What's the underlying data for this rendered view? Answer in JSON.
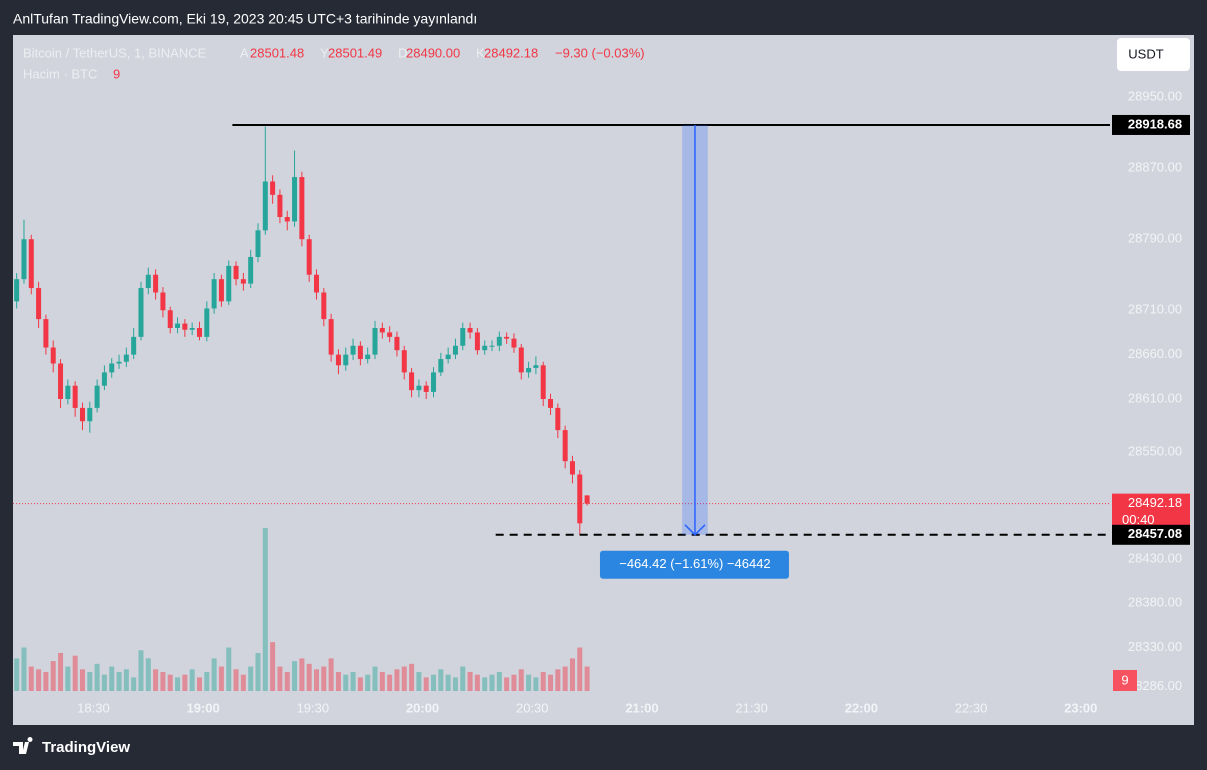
{
  "header": {
    "title": "AnlTufan TradingView.com, Eki 19, 2023 20:45 UTC+3 tarihinde yayınlandı"
  },
  "footer": {
    "brand": "TradingView"
  },
  "chart_data": {
    "type": "candlestick",
    "symbol": "Bitcoin / TetherUS, 1, BINANCE",
    "legend": {
      "open_label": "A",
      "open": "28501.48",
      "high_label": "Y",
      "high": "28501.49",
      "low_label": "D",
      "low": "28490.00",
      "close_label": "K",
      "close": "28492.18",
      "change": "−9.30 (−0.03%)"
    },
    "volume_title": "Hacim · BTC",
    "currency": "USDT",
    "up_color": "#26a69a",
    "down_color": "#f23645",
    "x": [
      "18:09",
      "18:11",
      "18:13",
      "18:15",
      "18:17",
      "18:19",
      "18:21",
      "18:23",
      "18:25",
      "18:27",
      "18:29",
      "18:31",
      "18:33",
      "18:35",
      "18:37",
      "18:39",
      "18:41",
      "18:43",
      "18:45",
      "18:47",
      "18:49",
      "18:51",
      "18:53",
      "18:55",
      "18:57",
      "18:59",
      "19:01",
      "19:03",
      "19:05",
      "19:07",
      "19:09",
      "19:11",
      "19:13",
      "19:15",
      "19:17",
      "19:19",
      "19:21",
      "19:23",
      "19:25",
      "19:27",
      "19:29",
      "19:31",
      "19:33",
      "19:35",
      "19:37",
      "19:39",
      "19:41",
      "19:43",
      "19:45",
      "19:47",
      "19:49",
      "19:51",
      "19:53",
      "19:55",
      "19:57",
      "19:59",
      "20:01",
      "20:03",
      "20:05",
      "20:07",
      "20:09",
      "20:11",
      "20:13",
      "20:15",
      "20:17",
      "20:19",
      "20:21",
      "20:23",
      "20:25",
      "20:27",
      "20:29",
      "20:31",
      "20:33",
      "20:35",
      "20:37",
      "20:39",
      "20:41",
      "20:43",
      "20:45"
    ],
    "open": [
      28720,
      28745,
      28790,
      28735,
      28700,
      28668,
      28650,
      28610,
      28625,
      28600,
      28585,
      28600,
      28625,
      28640,
      28650,
      28652,
      28660,
      28680,
      28735,
      28750,
      28730,
      28710,
      28690,
      28695,
      28688,
      28690,
      28680,
      28712,
      28745,
      28720,
      28760,
      28745,
      28740,
      28770,
      28800,
      28855,
      28840,
      28815,
      28810,
      28860,
      28790,
      28750,
      28730,
      28700,
      28660,
      28648,
      28660,
      28670,
      28655,
      28660,
      28690,
      28685,
      28680,
      28665,
      28640,
      28620,
      28625,
      28618,
      28640,
      28655,
      28660,
      28670,
      28690,
      28685,
      28665,
      28670,
      28670,
      28680,
      28678,
      28668,
      28640,
      28645,
      28648,
      28610,
      28600,
      28575,
      28540,
      28525,
      28501.48
    ],
    "high": [
      28752,
      28812,
      28795,
      28742,
      28705,
      28676,
      28655,
      28632,
      28630,
      28606,
      28607,
      28632,
      28648,
      28656,
      28660,
      28668,
      28690,
      28742,
      28758,
      28756,
      28736,
      28714,
      28702,
      28700,
      28696,
      28697,
      28720,
      28752,
      28750,
      28766,
      28765,
      28752,
      28778,
      28808,
      28917,
      28862,
      28846,
      28822,
      28890,
      28866,
      28795,
      28756,
      28735,
      28706,
      28666,
      28668,
      28678,
      28675,
      28668,
      28698,
      28696,
      28692,
      28686,
      28670,
      28645,
      28632,
      28630,
      28646,
      28662,
      28668,
      28678,
      28696,
      28696,
      28690,
      28676,
      28676,
      28686,
      28685,
      28684,
      28672,
      28652,
      28658,
      28652,
      28616,
      28605,
      28580,
      28546,
      28530,
      28501.49
    ],
    "low": [
      28712,
      28740,
      28728,
      28690,
      28660,
      28640,
      28600,
      28604,
      28590,
      28575,
      28572,
      28595,
      28620,
      28634,
      28644,
      28646,
      28655,
      28676,
      28728,
      28722,
      28702,
      28684,
      28684,
      28680,
      28682,
      28676,
      28675,
      28706,
      28714,
      28716,
      28738,
      28732,
      28735,
      28764,
      28795,
      28830,
      28808,
      28800,
      28804,
      28782,
      28742,
      28722,
      28692,
      28652,
      28638,
      28642,
      28654,
      28648,
      28650,
      28655,
      28678,
      28674,
      28658,
      28632,
      28612,
      28612,
      28610,
      28612,
      28636,
      28650,
      28655,
      28665,
      28678,
      28660,
      28660,
      28664,
      28664,
      28672,
      28662,
      28632,
      28634,
      28638,
      28602,
      28592,
      28566,
      28532,
      28515,
      28457,
      28490
    ],
    "close": [
      28745,
      28790,
      28735,
      28700,
      28668,
      28650,
      28610,
      28625,
      28600,
      28585,
      28600,
      28625,
      28640,
      28650,
      28652,
      28660,
      28680,
      28735,
      28750,
      28730,
      28710,
      28690,
      28695,
      28688,
      28690,
      28680,
      28712,
      28745,
      28720,
      28760,
      28745,
      28740,
      28770,
      28800,
      28855,
      28840,
      28815,
      28810,
      28860,
      28790,
      28750,
      28730,
      28700,
      28660,
      28648,
      28660,
      28670,
      28655,
      28660,
      28690,
      28685,
      28680,
      28665,
      28640,
      28620,
      28625,
      28618,
      28640,
      28655,
      28660,
      28670,
      28690,
      28685,
      28665,
      28670,
      28670,
      28680,
      28678,
      28668,
      28640,
      28645,
      28648,
      28610,
      28600,
      28575,
      28540,
      28525,
      28470,
      28492.18
    ],
    "volume": {
      "values": [
        12,
        16,
        9,
        8,
        7,
        11,
        14,
        9,
        13,
        8,
        7,
        10,
        6,
        9,
        7,
        8,
        5,
        15,
        12,
        8,
        7,
        6,
        5,
        6,
        8,
        5,
        7,
        12,
        9,
        16,
        8,
        6,
        9,
        14,
        60,
        18,
        9,
        7,
        11,
        12,
        10,
        8,
        9,
        12,
        7,
        6,
        7,
        5,
        6,
        9,
        7,
        6,
        8,
        9,
        10,
        7,
        5,
        6,
        8,
        6,
        5,
        9,
        7,
        6,
        5,
        6,
        7,
        5,
        6,
        8,
        6,
        5,
        7,
        6,
        8,
        9,
        12,
        16,
        9
      ]
    },
    "ylim": [
      28262,
      29020
    ],
    "yticks": [
      {
        "value": 28950,
        "label": "28950.00"
      },
      {
        "value": 28870,
        "label": "28870.00"
      },
      {
        "value": 28790,
        "label": "28790.00"
      },
      {
        "value": 28710,
        "label": "28710.00"
      },
      {
        "value": 28660,
        "label": "28660.00"
      },
      {
        "value": 28610,
        "label": "28610.00"
      },
      {
        "value": 28550,
        "label": "28550.00"
      },
      {
        "value": 28430,
        "label": "28430.00"
      },
      {
        "value": 28380,
        "label": "28380.00"
      },
      {
        "value": 28330,
        "label": "28330.00"
      },
      {
        "value": 28286,
        "label": "28286.00"
      }
    ],
    "xlim": [
      "18:08",
      "23:08"
    ],
    "xticks": [
      "18:30",
      "19:00",
      "19:30",
      "20:00",
      "20:30",
      "21:00",
      "21:30",
      "22:00",
      "22:30",
      "23:00"
    ],
    "annotations": {
      "high_line": 28918.68,
      "high_line_start": "19:08",
      "low_line": 28457.08,
      "low_line_start": "20:20",
      "measure_x": [
        "21:11",
        "21:18"
      ],
      "measure_label": "−464.42 (−1.61%) −46442",
      "countdown": "00:40"
    }
  }
}
